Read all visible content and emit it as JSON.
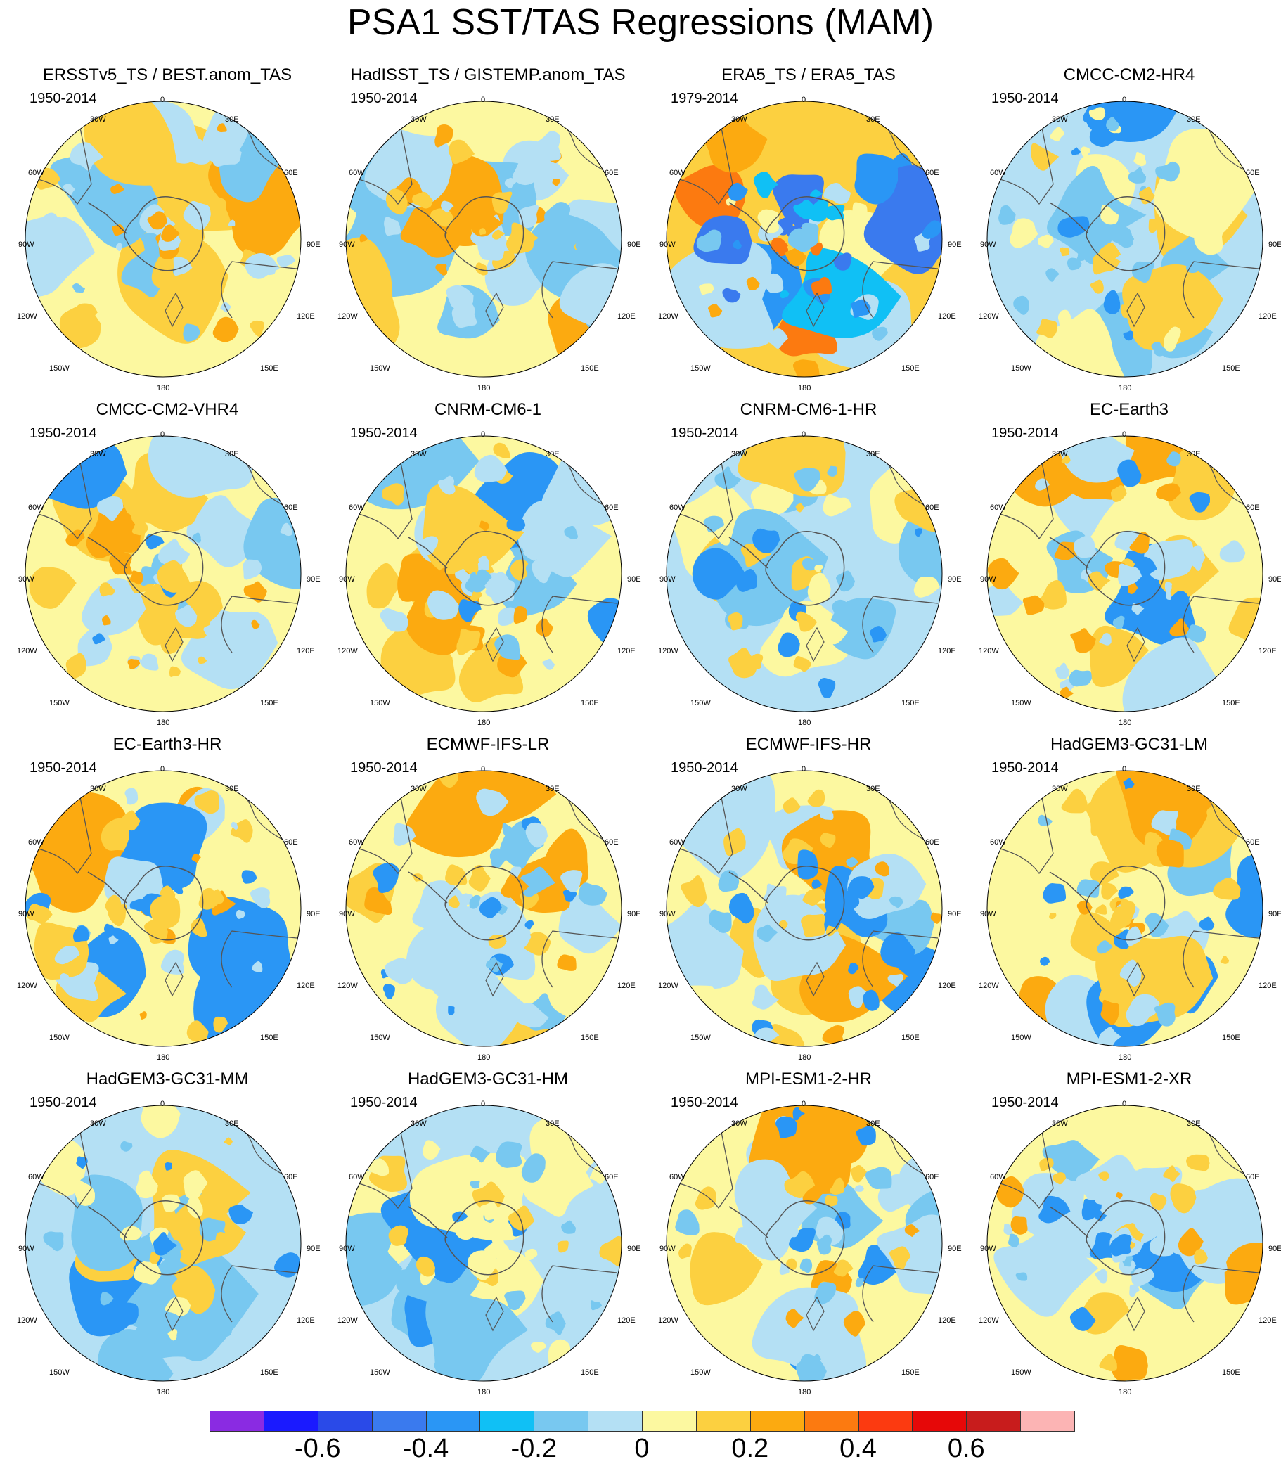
{
  "title": "PSA1 SST/TAS Regressions (MAM)",
  "map_labels": {
    "top": "0",
    "bottom": "180",
    "left": "90W",
    "right": "90E",
    "ul1": "30W",
    "ul2": "60W",
    "ur1": "30E",
    "ur2": "60E",
    "ll1": "120W",
    "ll2": "150W",
    "lr1": "120E",
    "lr2": "150E"
  },
  "panels": [
    {
      "title": "ERSSTv5_TS / BEST.anom_TAS",
      "period": "1950-2014",
      "pattern": "observed_weak"
    },
    {
      "title": "HadISST_TS / GISTEMP.anom_TAS",
      "period": "1950-2014",
      "pattern": "observed_weak"
    },
    {
      "title": "ERA5_TS / ERA5_TAS",
      "period": "1979-2014",
      "pattern": "reanalysis_strong"
    },
    {
      "title": "CMCC-CM2-HR4",
      "period": "1950-2014",
      "pattern": "model_mostly_negative"
    },
    {
      "title": "CMCC-CM2-VHR4",
      "period": "1950-2014",
      "pattern": "model_mixed"
    },
    {
      "title": "CNRM-CM6-1",
      "period": "1950-2014",
      "pattern": "model_mixed"
    },
    {
      "title": "CNRM-CM6-1-HR",
      "period": "1950-2014",
      "pattern": "model_mostly_negative"
    },
    {
      "title": "EC-Earth3",
      "period": "1950-2014",
      "pattern": "model_mixed"
    },
    {
      "title": "EC-Earth3-HR",
      "period": "1950-2014",
      "pattern": "model_mixed"
    },
    {
      "title": "ECMWF-IFS-LR",
      "period": "1950-2014",
      "pattern": "model_mixed"
    },
    {
      "title": "ECMWF-IFS-HR",
      "period": "1950-2014",
      "pattern": "model_mixed"
    },
    {
      "title": "HadGEM3-GC31-LM",
      "period": "1950-2014",
      "pattern": "model_mixed"
    },
    {
      "title": "HadGEM3-GC31-MM",
      "period": "1950-2014",
      "pattern": "model_mostly_negative"
    },
    {
      "title": "HadGEM3-GC31-HM",
      "period": "1950-2014",
      "pattern": "model_mostly_negative"
    },
    {
      "title": "MPI-ESM1-2-HR",
      "period": "1950-2014",
      "pattern": "model_mixed"
    },
    {
      "title": "MPI-ESM1-2-XR",
      "period": "1950-2014",
      "pattern": "model_mixed"
    }
  ],
  "colorbar": {
    "colors": [
      "#8a2be2",
      "#1a1aff",
      "#2a4ae8",
      "#3a7aee",
      "#2a96f5",
      "#10c0f5",
      "#78c8f0",
      "#b4e0f4",
      "#fcf8a0",
      "#fcd040",
      "#fcaa10",
      "#fc7a10",
      "#fc3a10",
      "#e60808",
      "#c81c1c",
      "#fcb4b4"
    ],
    "tick_labels": [
      "-0.6",
      "-0.4",
      "-0.2",
      "0",
      "0.2",
      "0.4",
      "0.6"
    ]
  }
}
